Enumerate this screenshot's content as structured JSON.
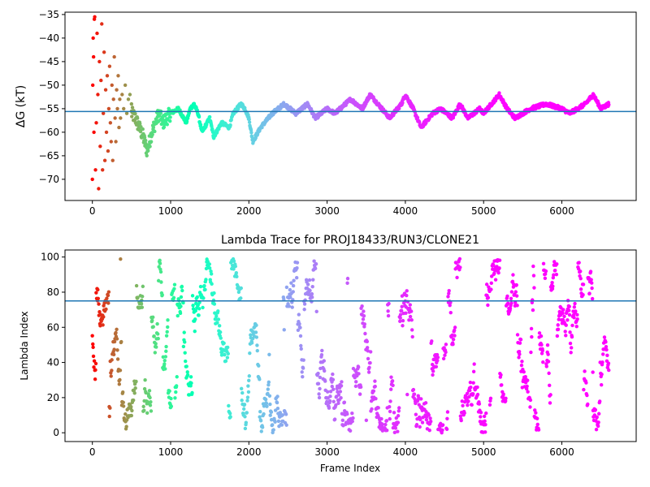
{
  "chart_data": [
    {
      "type": "scatter",
      "title": "",
      "ylabel": "ΔG (kT)",
      "xlabel": "",
      "xlim": [
        -350,
        6950
      ],
      "ylim": [
        -74.5,
        -34.5
      ],
      "xticks": [
        0,
        1000,
        2000,
        3000,
        4000,
        5000,
        6000
      ],
      "xtick_labels": [
        "0",
        "1000",
        "2000",
        "3000",
        "4000",
        "5000",
        "6000"
      ],
      "yticks": [
        -35,
        -40,
        -45,
        -50,
        -55,
        -60,
        -65,
        -70
      ],
      "ytick_labels": [
        "−35",
        "−40",
        "−45",
        "−50",
        "−55",
        "−60",
        "−65",
        "−70"
      ],
      "hline": -55.6,
      "hline_color": "#1f77b4",
      "colormap": "rainbow",
      "x_range": [
        0,
        6600
      ],
      "trace_keypoints": {
        "x": [
          100,
          150,
          200,
          300,
          450,
          550,
          650,
          700,
          760,
          850,
          900,
          1000,
          1100,
          1200,
          1250,
          1300,
          1350,
          1400,
          1500,
          1550,
          1650,
          1750,
          1800,
          1900,
          1950,
          2000,
          2050,
          2150,
          2300,
          2450,
          2600,
          2750,
          2850,
          3000,
          3100,
          3300,
          3450,
          3550,
          3700,
          3800,
          3950,
          4000,
          4100,
          4200,
          4250,
          4350,
          4450,
          4600,
          4700,
          4800,
          4950,
          5000,
          5200,
          5300,
          5400,
          5600,
          5800,
          6000,
          6100,
          6300,
          6400,
          6500,
          6600
        ],
        "y": [
          -50,
          -45,
          -55,
          -52,
          -55,
          -57,
          -61,
          -64,
          -60,
          -56,
          -58,
          -56,
          -55,
          -58,
          -55,
          -54,
          -56,
          -60,
          -57,
          -61,
          -58,
          -59,
          -56,
          -54,
          -55,
          -57,
          -62,
          -59,
          -56,
          -54,
          -56,
          -54,
          -57,
          -55,
          -56,
          -53,
          -55,
          -52,
          -55,
          -57,
          -54,
          -52,
          -55,
          -59,
          -58,
          -56,
          -55,
          -57,
          -54,
          -57,
          -55,
          -56,
          -52,
          -55,
          -57,
          -55,
          -54,
          -55,
          -56,
          -54,
          -52,
          -55,
          -54
        ]
      },
      "early_scatter_points": {
        "x": [
          0,
          5,
          10,
          15,
          20,
          25,
          30,
          40,
          50,
          60,
          70,
          80,
          90,
          100,
          110,
          120,
          130,
          140,
          150,
          160,
          170,
          180,
          190,
          200,
          210,
          220,
          230,
          240,
          250,
          260,
          270,
          280,
          290,
          300,
          310,
          320,
          330,
          340,
          350,
          360,
          380,
          400,
          420,
          440,
          460,
          480,
          500
        ],
        "y": [
          -70,
          -50,
          -40,
          -44,
          -60,
          -36,
          -35.5,
          -68,
          -58,
          -39,
          -52,
          -72,
          -45,
          -63,
          -49,
          -37,
          -68,
          -56,
          -43,
          -66,
          -51,
          -60,
          -48,
          -64,
          -55,
          -46,
          -58,
          -62,
          -50,
          -66,
          -53,
          -44,
          -57,
          -62,
          -51,
          -55,
          -48,
          -59,
          -53,
          -57,
          -52,
          -55,
          -50,
          -56,
          -53,
          -52,
          -54
        ]
      }
    },
    {
      "type": "scatter",
      "title": "Lambda Trace for PROJ18433/RUN3/CLONE21",
      "xlabel": "Frame Index",
      "ylabel": "Lambda Index",
      "xlim": [
        -350,
        6950
      ],
      "ylim": [
        -5,
        104
      ],
      "xticks": [
        0,
        1000,
        2000,
        3000,
        4000,
        5000,
        6000
      ],
      "xtick_labels": [
        "0",
        "1000",
        "2000",
        "3000",
        "4000",
        "5000",
        "6000"
      ],
      "yticks": [
        0,
        20,
        40,
        60,
        80,
        100
      ],
      "ytick_labels": [
        "0",
        "20",
        "40",
        "60",
        "80",
        "100"
      ],
      "hline": 75,
      "hline_color": "#1f77b4",
      "colormap": "rainbow",
      "value_range": [
        0,
        99
      ],
      "x_range": [
        0,
        6600
      ]
    }
  ]
}
